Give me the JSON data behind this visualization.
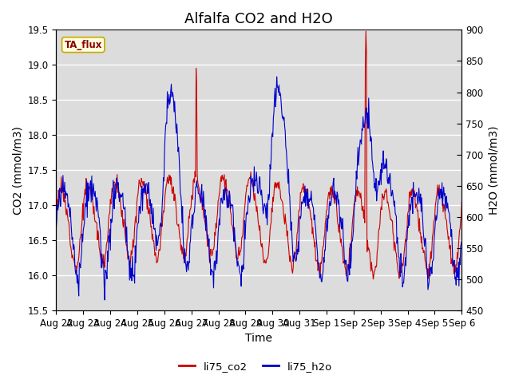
{
  "title": "Alfalfa CO2 and H2O",
  "xlabel": "Time",
  "ylabel_left": "CO2 (mmol/m3)",
  "ylabel_right": "H2O (mmol/m3)",
  "ylim_left": [
    15.5,
    19.5
  ],
  "ylim_right": [
    450,
    900
  ],
  "yticks_left": [
    15.5,
    16.0,
    16.5,
    17.0,
    17.5,
    18.0,
    18.5,
    19.0,
    19.5
  ],
  "yticks_right": [
    450,
    500,
    550,
    600,
    650,
    700,
    750,
    800,
    850,
    900
  ],
  "xtick_labels": [
    "Aug 22",
    "Aug 23",
    "Aug 24",
    "Aug 25",
    "Aug 26",
    "Aug 27",
    "Aug 28",
    "Aug 29",
    "Aug 30",
    "Aug 31",
    "Sep 1",
    "Sep 2",
    "Sep 3",
    "Sep 4",
    "Sep 5",
    "Sep 6"
  ],
  "annotation": "TA_flux",
  "legend_labels": [
    "li75_co2",
    "li75_h2o"
  ],
  "co2_color": "#cc0000",
  "h2o_color": "#0000cc",
  "bg_color": "#dcdcdc",
  "title_fontsize": 13,
  "label_fontsize": 10,
  "tick_fontsize": 8.5
}
